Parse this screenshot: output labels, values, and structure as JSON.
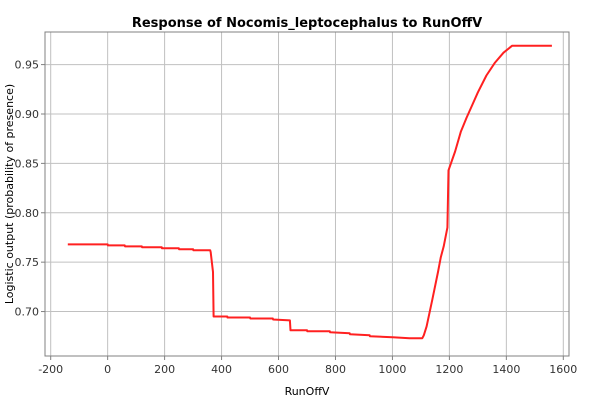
{
  "chart_data": {
    "type": "line",
    "title": "Response of Nocomis_leptocephalus to RunOffV",
    "xlabel": "RunOffV",
    "ylabel": "Logistic output (probability of presence)",
    "xlim": [
      -220,
      1620
    ],
    "ylim": [
      0.655,
      0.983
    ],
    "xticks": [
      -200,
      0,
      200,
      400,
      600,
      800,
      1000,
      1200,
      1400,
      1600
    ],
    "xtick_labels": [
      "-200",
      "0",
      "200",
      "400",
      "600",
      "800",
      "1000",
      "1200",
      "1400",
      "1600"
    ],
    "yticks": [
      0.7,
      0.75,
      0.8,
      0.85,
      0.9,
      0.95
    ],
    "ytick_labels": [
      "0.70",
      "0.75",
      "0.80",
      "0.85",
      "0.90",
      "0.95"
    ],
    "grid": true,
    "series": [
      {
        "color": "#ff2020",
        "x": [
          -140,
          0,
          1,
          60,
          61,
          120,
          121,
          190,
          191,
          250,
          251,
          300,
          301,
          360,
          362,
          370,
          372,
          420,
          421,
          500,
          501,
          580,
          581,
          640,
          642,
          700,
          701,
          780,
          781,
          850,
          851,
          920,
          921,
          1000,
          1001,
          1060,
          1061,
          1105,
          1110,
          1120,
          1140,
          1160,
          1170,
          1180,
          1193,
          1197,
          1220,
          1240,
          1260,
          1280,
          1300,
          1330,
          1360,
          1390,
          1420,
          1430,
          1560
        ],
        "y": [
          0.768,
          0.768,
          0.767,
          0.767,
          0.766,
          0.766,
          0.765,
          0.765,
          0.764,
          0.764,
          0.763,
          0.763,
          0.762,
          0.762,
          0.76,
          0.74,
          0.695,
          0.695,
          0.694,
          0.694,
          0.693,
          0.693,
          0.692,
          0.691,
          0.681,
          0.681,
          0.68,
          0.68,
          0.679,
          0.678,
          0.677,
          0.676,
          0.675,
          0.674,
          0.674,
          0.673,
          0.673,
          0.673,
          0.676,
          0.685,
          0.712,
          0.74,
          0.755,
          0.766,
          0.785,
          0.843,
          0.862,
          0.882,
          0.896,
          0.909,
          0.922,
          0.939,
          0.952,
          0.962,
          0.969,
          0.969,
          0.969
        ]
      }
    ]
  }
}
